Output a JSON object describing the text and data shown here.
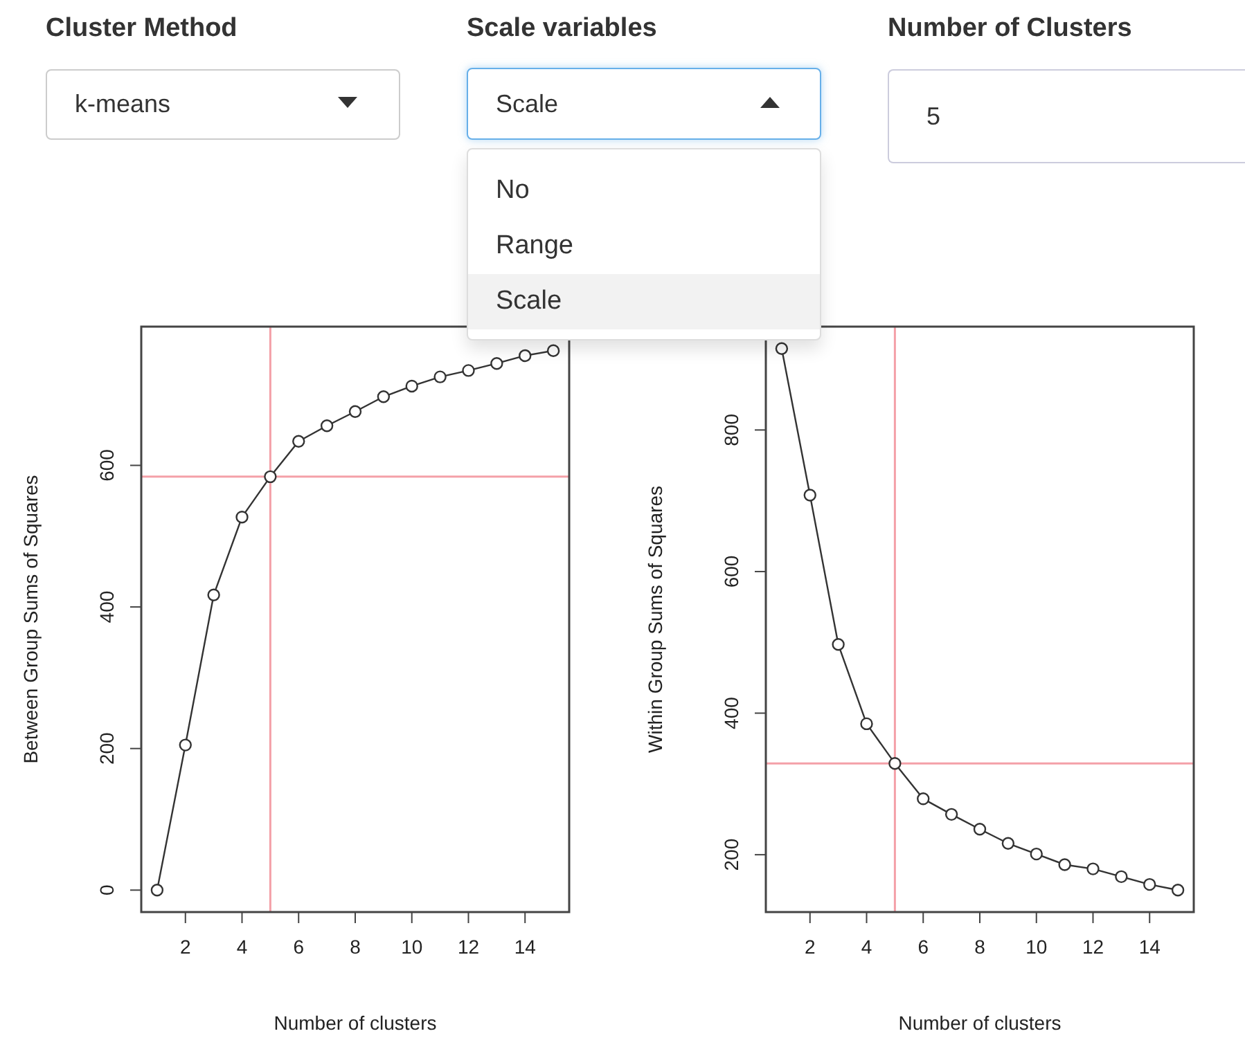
{
  "chart_data": [
    {
      "type": "other",
      "annotations": [
        "Cluster Method",
        "k-means",
        "Scale variables",
        "Scale",
        "No",
        "Range",
        "Scale",
        "Number of Clusters",
        "5"
      ]
    },
    {
      "type": "line",
      "xlabel": "Number of clusters",
      "ylabel": "Between Group Sums of Squares",
      "x": [
        1,
        2,
        3,
        4,
        5,
        6,
        7,
        8,
        9,
        10,
        11,
        12,
        13,
        14,
        15
      ],
      "color": "#333333",
      "marker": "circle",
      "line_style": "solid",
      "grid": false,
      "xlim": [
        0.44,
        15.56
      ],
      "ylim": [
        -31,
        796
      ],
      "xticks": [
        2,
        4,
        6,
        8,
        10,
        12,
        14
      ],
      "yticks": [
        0,
        200,
        400,
        600
      ],
      "values": [
        0,
        205,
        417,
        527,
        584,
        634,
        656,
        676,
        697,
        712,
        725,
        734,
        744,
        755,
        762
      ],
      "ref_lines": [
        {
          "axis": "x",
          "value": 5,
          "color": "#f4a0a8"
        },
        {
          "axis": "y",
          "value": 584,
          "color": "#f4a0a8"
        }
      ]
    },
    {
      "type": "line",
      "xlabel": "Number of clusters",
      "ylabel": "Within Group Sums of Squares",
      "x": [
        1,
        2,
        3,
        4,
        5,
        6,
        7,
        8,
        9,
        10,
        11,
        12,
        13,
        14,
        15
      ],
      "color": "#333333",
      "marker": "circle",
      "line_style": "solid",
      "grid": false,
      "xlim": [
        0.44,
        15.56
      ],
      "ylim": [
        119,
        946
      ],
      "xticks": [
        2,
        4,
        6,
        8,
        10,
        12,
        14
      ],
      "yticks": [
        200,
        400,
        600,
        800
      ],
      "values": [
        915,
        708,
        497,
        385,
        329,
        279,
        257,
        236,
        216,
        201,
        186,
        180,
        169,
        158,
        150
      ],
      "ref_lines": [
        {
          "axis": "x",
          "value": 5,
          "color": "#f4a0a8"
        },
        {
          "axis": "y",
          "value": 329,
          "color": "#f4a0a8"
        }
      ]
    }
  ]
}
